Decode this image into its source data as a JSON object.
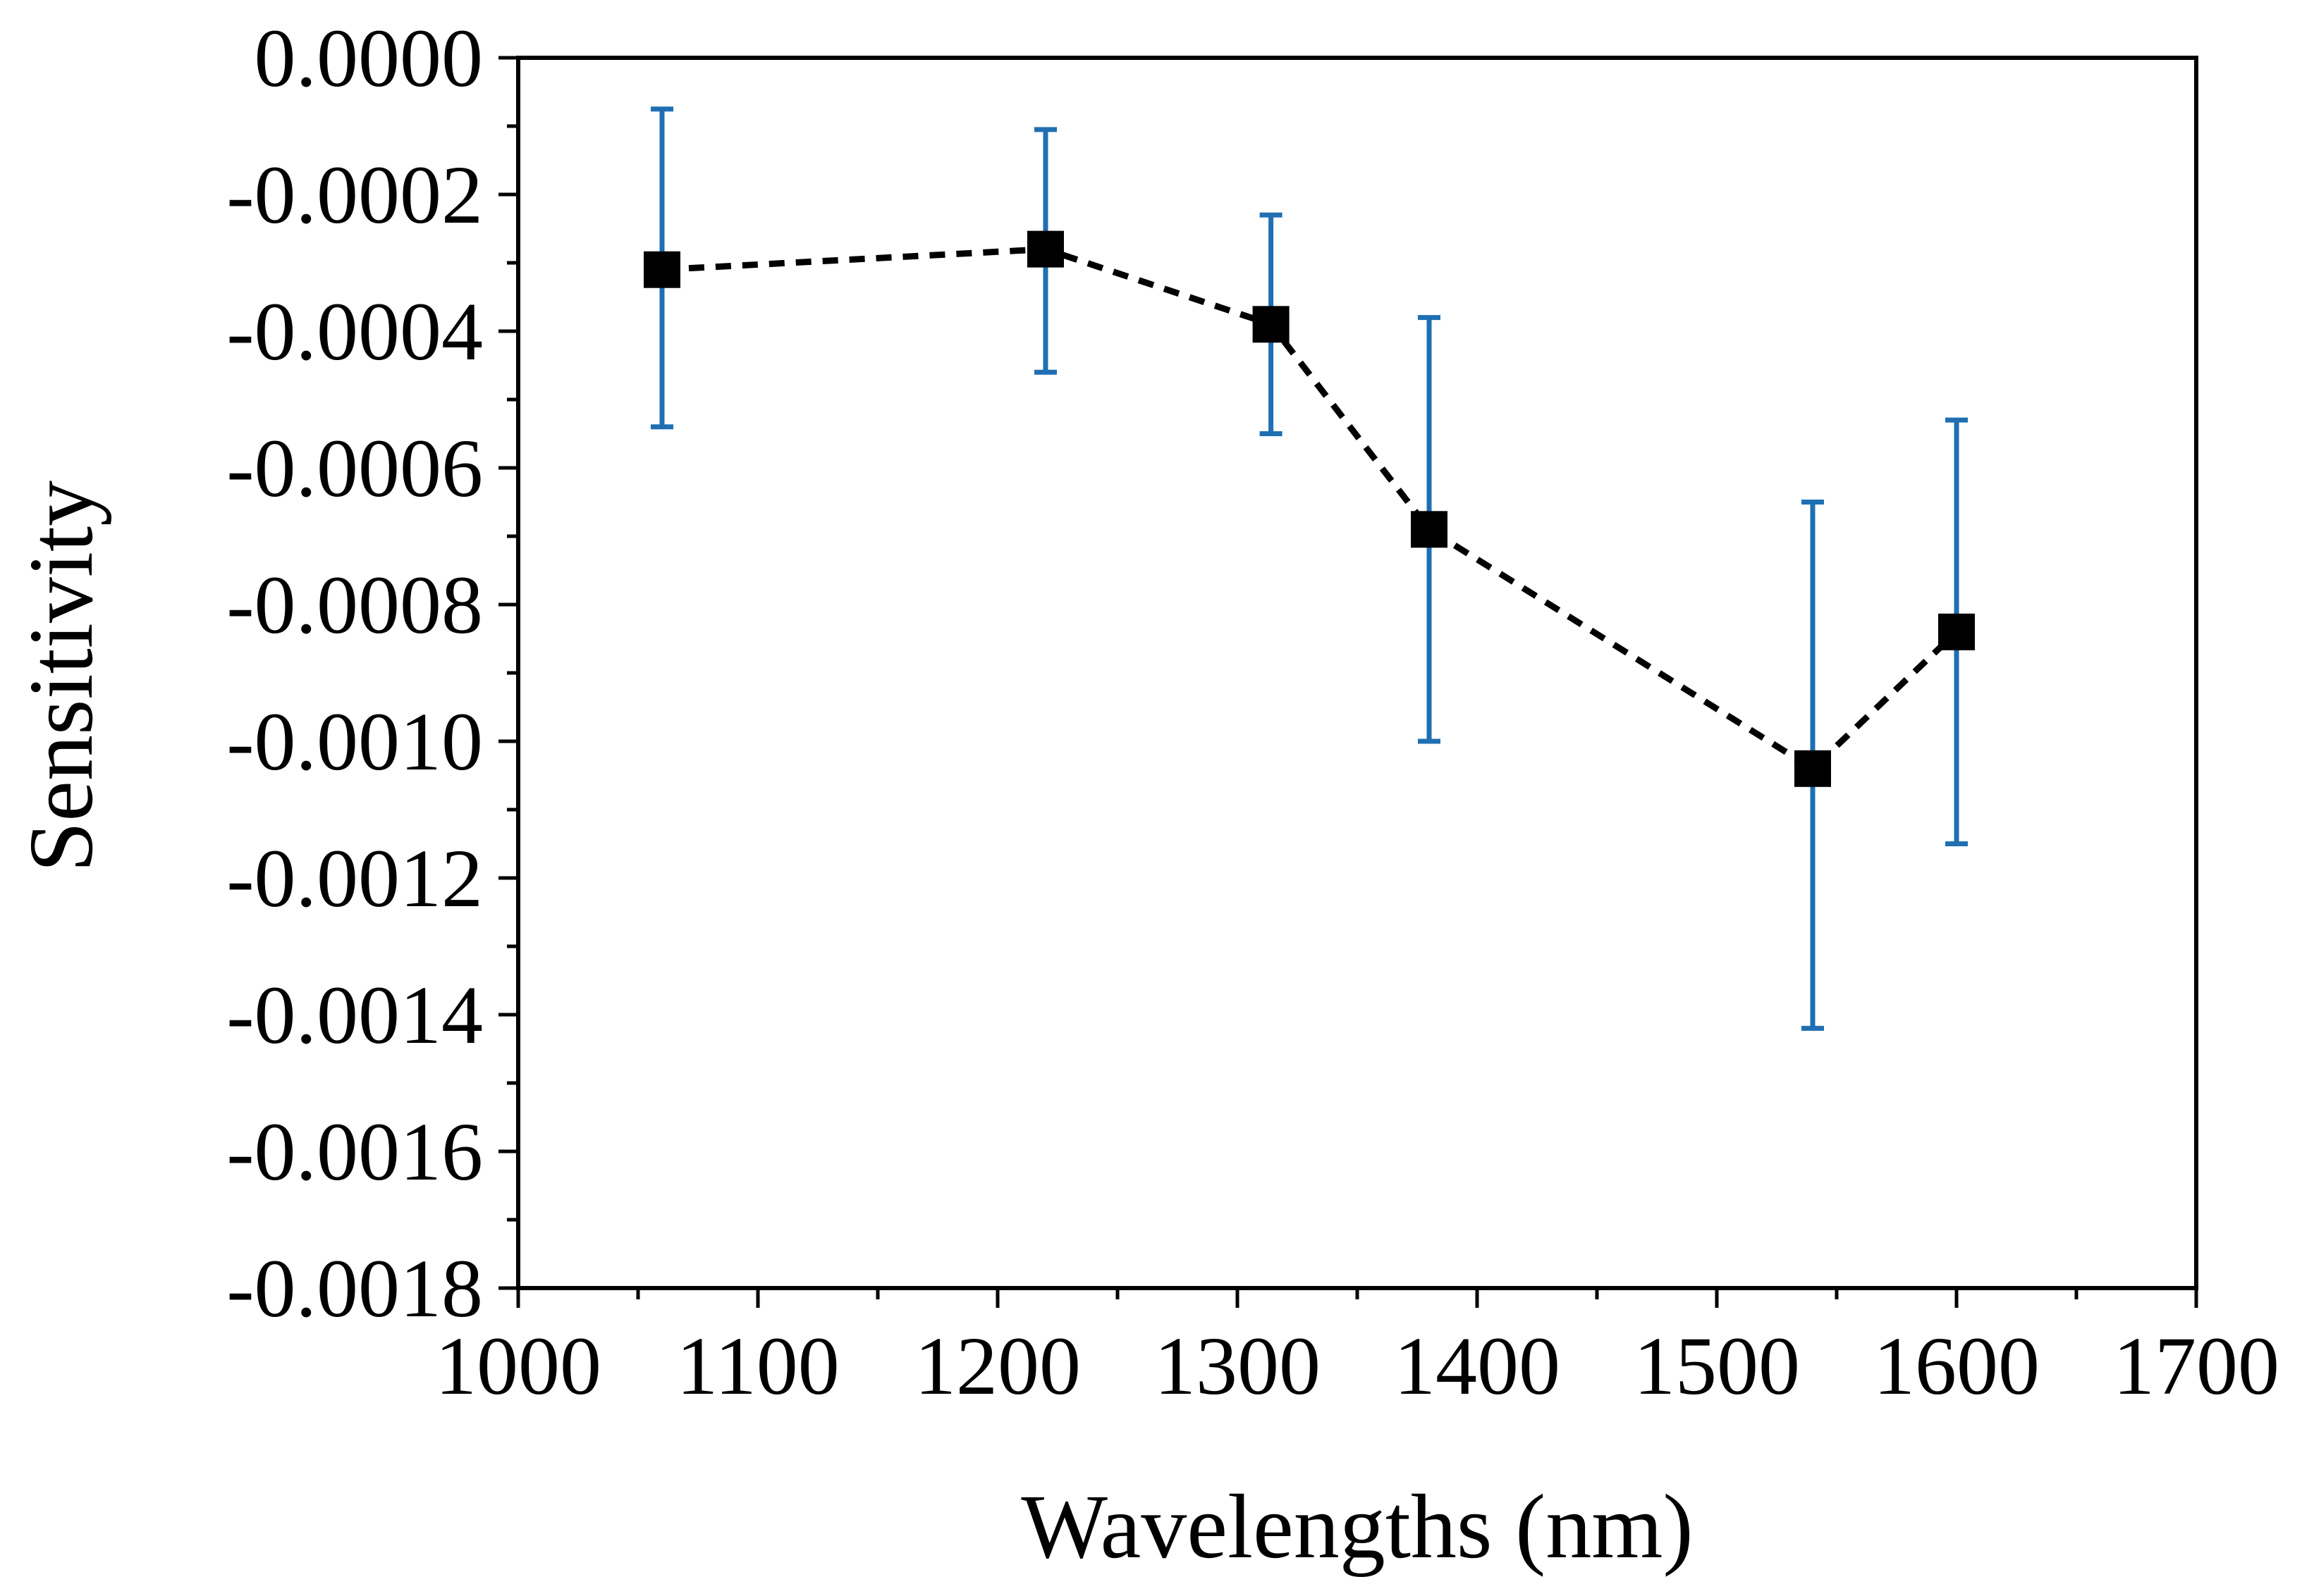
{
  "chart_data": {
    "type": "scatter",
    "title": "",
    "xlabel": "Wavelengths (nm)",
    "ylabel": "Sensitivity",
    "xlim": [
      1000,
      1700
    ],
    "ylim": [
      -0.0018,
      0.0
    ],
    "x_ticks": [
      1000,
      1100,
      1200,
      1300,
      1400,
      1500,
      1600,
      1700
    ],
    "x_tick_labels": [
      "1000",
      "1100",
      "1200",
      "1300",
      "1400",
      "1500",
      "1600",
      "1700"
    ],
    "y_ticks": [
      0.0,
      -0.0002,
      -0.0004,
      -0.0006,
      -0.0008,
      -0.001,
      -0.0012,
      -0.0014,
      -0.0016,
      -0.0018
    ],
    "y_tick_labels": [
      "0.0000",
      "-0.0002",
      "-0.0004",
      "-0.0006",
      "-0.0008",
      "-0.0010",
      "-0.0012",
      "-0.0014",
      "-0.0016",
      "-0.0018"
    ],
    "grid": false,
    "legend": null,
    "series": [
      {
        "name": "Sensitivity",
        "line_style": "dashed",
        "marker": "square",
        "color": "#000000",
        "error_bar_color": "#1f6fb2",
        "x": [
          1060,
          1220,
          1314,
          1380,
          1540,
          1600
        ],
        "y": [
          -0.00031,
          -0.00028,
          -0.00039,
          -0.00069,
          -0.00104,
          -0.00084
        ],
        "y_err_upper": [
          -7.5e-05,
          -0.000105,
          -0.00023,
          -0.00038,
          -0.00065,
          -0.00053
        ],
        "y_err_lower": [
          -0.00054,
          -0.00046,
          -0.00055,
          -0.001,
          -0.00142,
          -0.00115
        ]
      }
    ]
  }
}
